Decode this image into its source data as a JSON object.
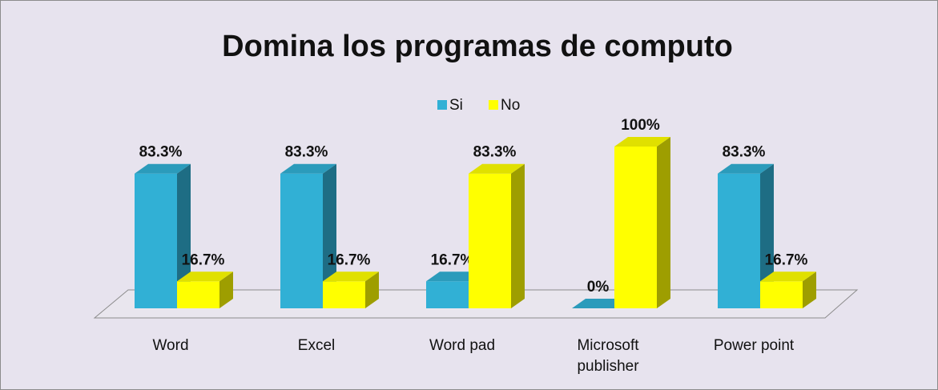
{
  "chart_data": {
    "type": "bar3d",
    "title": "Domina los programas de computo",
    "categories": [
      "Word",
      "Excel",
      "Word pad",
      "Microsoft publisher",
      "Power point"
    ],
    "series": [
      {
        "name": "Si",
        "color": "#31b0d5",
        "values": [
          83.3,
          83.3,
          16.7,
          0,
          83.3
        ],
        "value_labels": [
          "83.3%",
          "83.3%",
          "16.7%",
          "0%",
          "83.3%"
        ]
      },
      {
        "name": "No",
        "color": "#ffff00",
        "values": [
          16.7,
          16.7,
          83.3,
          100,
          16.7
        ],
        "value_labels": [
          "16.7%",
          "16.7%",
          "83.3%",
          "100%",
          "16.7%"
        ]
      }
    ],
    "legend": "top"
  }
}
